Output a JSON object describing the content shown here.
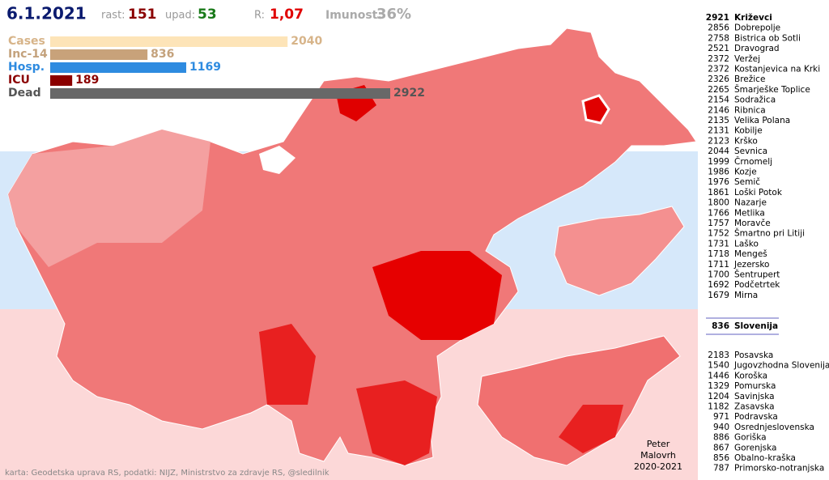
{
  "header": {
    "date": "6.1.2021",
    "rast_label": "rast:",
    "rast": 151,
    "upad_label": "upad:",
    "upad": 53,
    "r_label": "R:",
    "r": "1,07",
    "imunost_label": "Imunost:",
    "imunost": "36%"
  },
  "bars": [
    {
      "label": "Cases",
      "value": 2040,
      "color": "#fde4b8",
      "label_color": "#d7b489"
    },
    {
      "label": "Inc-14",
      "value": 836,
      "color": "#c8a27a",
      "label_color": "#c4a27c"
    },
    {
      "label": "Hosp.",
      "value": 1169,
      "color": "#2e8be0",
      "label_color": "#2e8be0"
    },
    {
      "label": "ICU",
      "value": 189,
      "color": "#8b0000",
      "label_color": "#8b0000"
    },
    {
      "label": "Dead",
      "value": 2922,
      "color": "#686868",
      "label_color": "#555555"
    }
  ],
  "municipalities": [
    {
      "value": 2921,
      "name": "Križevci"
    },
    {
      "value": 2856,
      "name": "Dobrepolje"
    },
    {
      "value": 2758,
      "name": "Bistrica ob Sotli"
    },
    {
      "value": 2521,
      "name": "Dravograd"
    },
    {
      "value": 2372,
      "name": "Veržej"
    },
    {
      "value": 2372,
      "name": "Kostanjevica na Krki"
    },
    {
      "value": 2326,
      "name": "Brežice"
    },
    {
      "value": 2265,
      "name": "Šmarješke Toplice"
    },
    {
      "value": 2154,
      "name": "Sodražica"
    },
    {
      "value": 2146,
      "name": "Ribnica"
    },
    {
      "value": 2135,
      "name": "Velika Polana"
    },
    {
      "value": 2131,
      "name": "Kobilje"
    },
    {
      "value": 2123,
      "name": "Krško"
    },
    {
      "value": 2044,
      "name": "Sevnica"
    },
    {
      "value": 1999,
      "name": "Črnomelj"
    },
    {
      "value": 1986,
      "name": "Kozje"
    },
    {
      "value": 1976,
      "name": "Semič"
    },
    {
      "value": 1861,
      "name": "Loški Potok"
    },
    {
      "value": 1800,
      "name": "Nazarje"
    },
    {
      "value": 1766,
      "name": "Metlika"
    },
    {
      "value": 1757,
      "name": "Moravče"
    },
    {
      "value": 1752,
      "name": "Šmartno pri Litiji"
    },
    {
      "value": 1731,
      "name": "Laško"
    },
    {
      "value": 1718,
      "name": "Mengeš"
    },
    {
      "value": 1711,
      "name": "Jezersko"
    },
    {
      "value": 1700,
      "name": "Šentrupert"
    },
    {
      "value": 1692,
      "name": "Podčetrtek"
    },
    {
      "value": 1679,
      "name": "Mirna"
    }
  ],
  "country": {
    "value": 836,
    "name": "Slovenija"
  },
  "regions": [
    {
      "value": 2183,
      "name": "Posavska"
    },
    {
      "value": 1540,
      "name": "Jugovzhodna Slovenija"
    },
    {
      "value": 1446,
      "name": "Koroška"
    },
    {
      "value": 1329,
      "name": "Pomurska"
    },
    {
      "value": 1204,
      "name": "Savinjska"
    },
    {
      "value": 1182,
      "name": "Zasavska"
    },
    {
      "value": 971,
      "name": "Podravska"
    },
    {
      "value": 940,
      "name": "Osrednjeslovenska"
    },
    {
      "value": 886,
      "name": "Goriška"
    },
    {
      "value": 867,
      "name": "Gorenjska"
    },
    {
      "value": 856,
      "name": "Obalno-kraška"
    },
    {
      "value": 787,
      "name": "Primorsko-notranjska"
    }
  ],
  "author": [
    "Peter",
    "Malovrh",
    "2020-2021"
  ],
  "credits": "karta: Geodetska uprava RS,  podatki: NIJZ, Ministrstvo za zdravje RS, @sledilnik"
}
